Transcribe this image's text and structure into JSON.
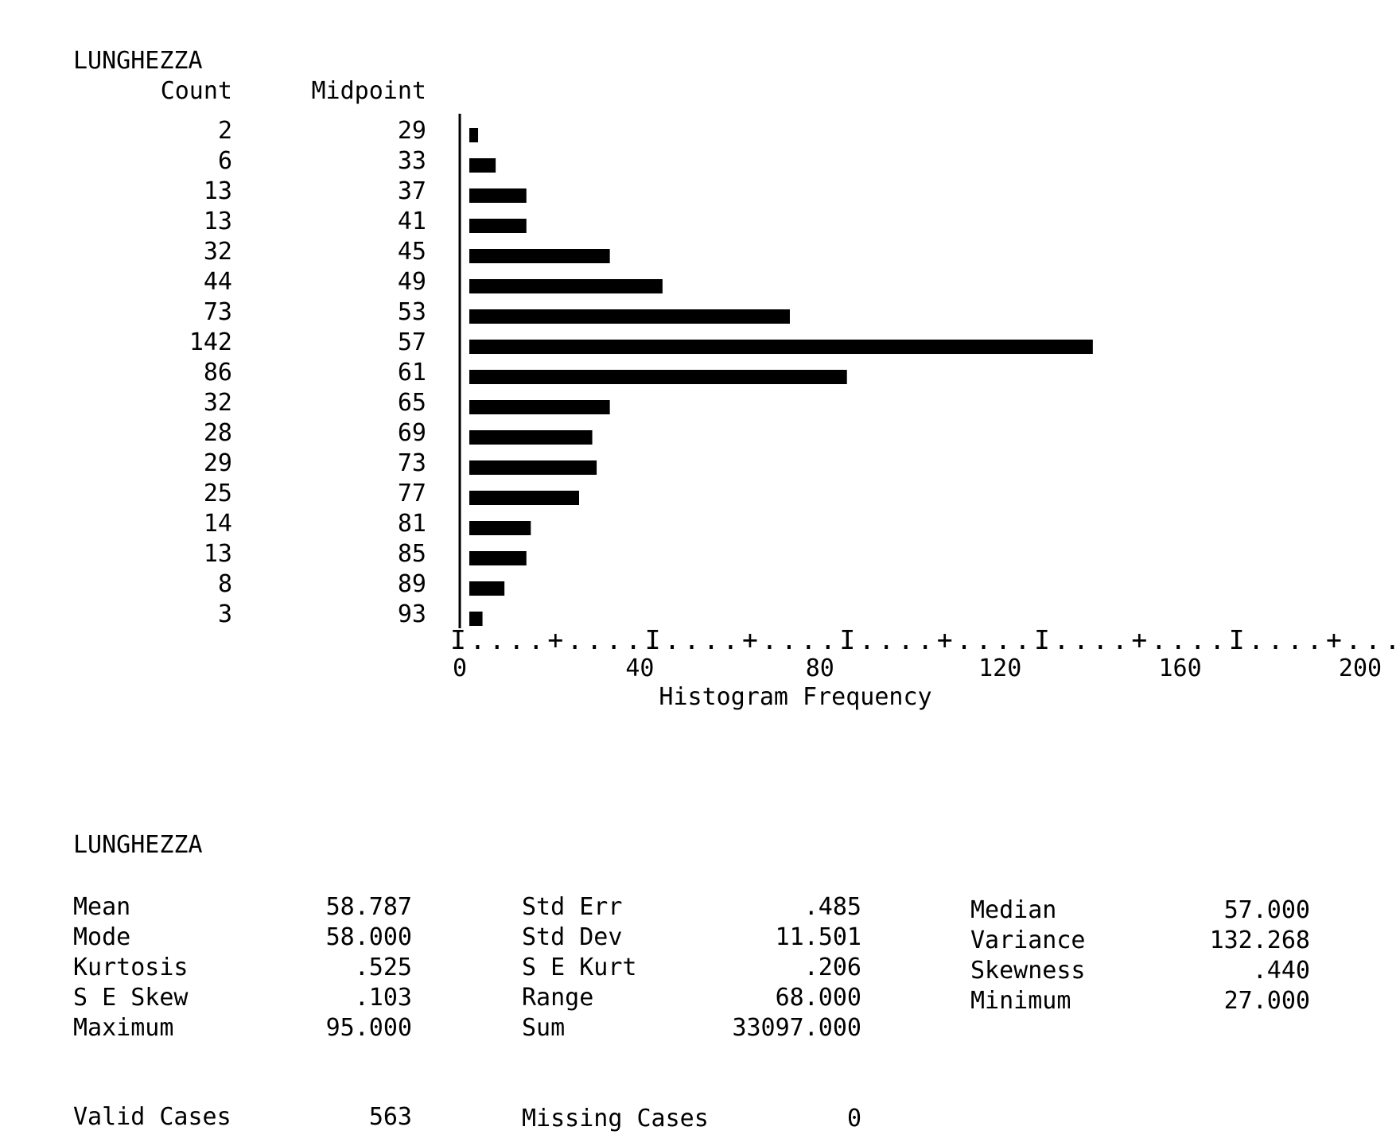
{
  "histogram": {
    "variable": "LUNGHEZZA",
    "count_header": "Count",
    "midpoint_header": "Midpoint",
    "xlabel": "Histogram Frequency",
    "axis_ruler": "I....+....I....+....I....+....I....+....I....+....I"
  },
  "chart_data": {
    "type": "bar",
    "orientation": "horizontal",
    "title": "LUNGHEZZA",
    "xlabel": "Histogram Frequency",
    "ylabel": "Midpoint",
    "categories": [
      "29",
      "33",
      "37",
      "41",
      "45",
      "49",
      "53",
      "57",
      "61",
      "65",
      "69",
      "73",
      "77",
      "81",
      "85",
      "89",
      "93"
    ],
    "values": [
      2,
      6,
      13,
      13,
      32,
      44,
      73,
      142,
      86,
      32,
      28,
      29,
      25,
      14,
      13,
      8,
      3
    ],
    "xlim": [
      0,
      200
    ],
    "xticks": [
      "0",
      "40",
      "80",
      "120",
      "160",
      "200"
    ],
    "grid": false
  },
  "stats": {
    "title": "LUNGHEZZA",
    "col1": [
      {
        "label": "Mean",
        "value": "58.787"
      },
      {
        "label": "Mode",
        "value": "58.000"
      },
      {
        "label": "Kurtosis",
        "value": ".525"
      },
      {
        "label": "S E Skew",
        "value": ".103"
      },
      {
        "label": "Maximum",
        "value": "95.000"
      }
    ],
    "col2": [
      {
        "label": "Std Err",
        "value": ".485"
      },
      {
        "label": "Std Dev",
        "value": "11.501"
      },
      {
        "label": "S E Kurt",
        "value": ".206"
      },
      {
        "label": "Range",
        "value": "68.000"
      },
      {
        "label": "Sum",
        "value": "33097.000"
      }
    ],
    "col3": [
      {
        "label": "Median",
        "value": "57.000"
      },
      {
        "label": "Variance",
        "value": "132.268"
      },
      {
        "label": "Skewness",
        "value": ".440"
      },
      {
        "label": "Minimum",
        "value": "27.000"
      }
    ]
  },
  "cases": {
    "valid_label": "Valid Cases",
    "valid_value": "563",
    "missing_label": "Missing Cases",
    "missing_value": "0"
  }
}
